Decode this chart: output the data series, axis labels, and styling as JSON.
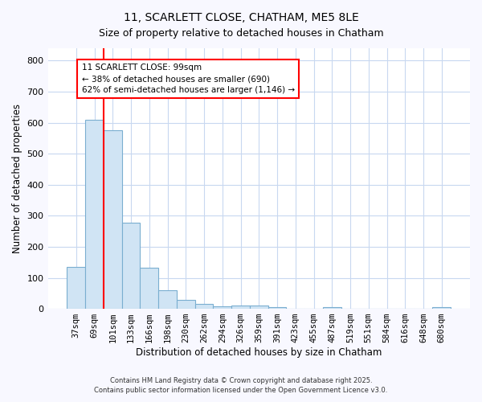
{
  "title1": "11, SCARLETT CLOSE, CHATHAM, ME5 8LE",
  "title2": "Size of property relative to detached houses in Chatham",
  "xlabel": "Distribution of detached houses by size in Chatham",
  "ylabel": "Number of detached properties",
  "categories": [
    "37sqm",
    "69sqm",
    "101sqm",
    "133sqm",
    "166sqm",
    "198sqm",
    "230sqm",
    "262sqm",
    "294sqm",
    "326sqm",
    "359sqm",
    "391sqm",
    "423sqm",
    "455sqm",
    "487sqm",
    "519sqm",
    "551sqm",
    "584sqm",
    "616sqm",
    "648sqm",
    "680sqm"
  ],
  "values": [
    135,
    610,
    575,
    278,
    132,
    60,
    28,
    15,
    8,
    10,
    10,
    5,
    0,
    0,
    5,
    0,
    0,
    0,
    0,
    0,
    5
  ],
  "bar_color": "#d0e4f4",
  "bar_edge_color": "#7aaed0",
  "red_line_color": "red",
  "annotation_text": "11 SCARLETT CLOSE: 99sqm\n← 38% of detached houses are smaller (690)\n62% of semi-detached houses are larger (1,146) →",
  "annotation_box_color": "white",
  "annotation_box_edge_color": "red",
  "ylim": [
    0,
    840
  ],
  "yticks": [
    0,
    100,
    200,
    300,
    400,
    500,
    600,
    700,
    800
  ],
  "fig_bg_color": "#f8f8ff",
  "plot_bg_color": "#ffffff",
  "grid_color": "#c8d8f0",
  "footer1": "Contains HM Land Registry data © Crown copyright and database right 2025.",
  "footer2": "Contains public sector information licensed under the Open Government Licence v3.0."
}
